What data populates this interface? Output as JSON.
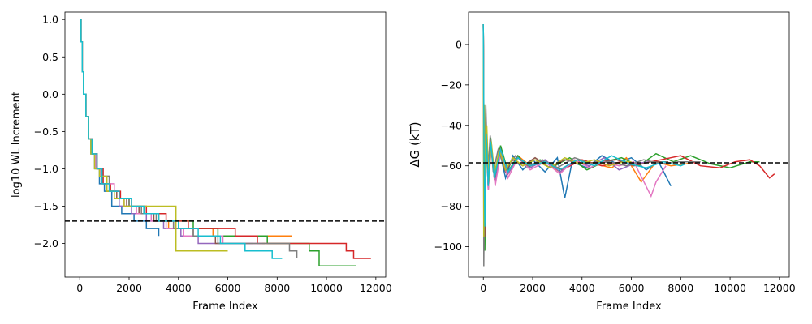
{
  "chart_data": [
    {
      "type": "line",
      "xlabel": "Frame Index",
      "ylabel": "log10 WL Increment",
      "xlim": [
        -600,
        12400
      ],
      "ylim": [
        -2.45,
        1.1
      ],
      "xticks": [
        0,
        2000,
        4000,
        6000,
        8000,
        10000,
        12000
      ],
      "xtick_labels": [
        "0",
        "2000",
        "4000",
        "6000",
        "8000",
        "10000",
        "12000"
      ],
      "yticks": [
        1.0,
        0.5,
        0.0,
        -0.5,
        -1.0,
        -1.5,
        -2.0
      ],
      "ytick_labels": [
        "1.0",
        "0.5",
        "0.0",
        "−0.5",
        "−1.0",
        "−1.5",
        "−2.0"
      ],
      "grid": false,
      "reference_line": {
        "y": -1.7,
        "style": "dashed",
        "color": "#000000"
      },
      "series": [
        {
          "color": "#1f77b4",
          "x": [
            0,
            50,
            100,
            150,
            250,
            350,
            450,
            600,
            800,
            1000,
            1300,
            1700,
            2200,
            2700,
            3200
          ],
          "y": [
            1.0,
            0.7,
            0.3,
            0.0,
            -0.3,
            -0.6,
            -0.8,
            -1.0,
            -1.2,
            -1.3,
            -1.5,
            -1.6,
            -1.7,
            -1.8,
            -1.9
          ]
        },
        {
          "color": "#ff7f0e",
          "x": [
            0,
            50,
            100,
            150,
            250,
            350,
            500,
            700,
            900,
            1200,
            1600,
            2000,
            2500,
            3000,
            3600,
            4400,
            5400,
            6500,
            7400,
            8100,
            8600
          ],
          "y": [
            1.0,
            0.7,
            0.3,
            0.0,
            -0.3,
            -0.6,
            -0.8,
            -1.0,
            -1.1,
            -1.3,
            -1.4,
            -1.5,
            -1.6,
            -1.7,
            -1.8,
            -1.8,
            -1.9,
            -1.9,
            -1.9,
            -1.9,
            -1.9
          ]
        },
        {
          "color": "#2ca02c",
          "x": [
            0,
            50,
            100,
            150,
            250,
            350,
            500,
            700,
            900,
            1200,
            1600,
            2000,
            2600,
            3200,
            3900,
            4600,
            5600,
            6600,
            7600,
            8600,
            9300,
            9700,
            10300,
            11200
          ],
          "y": [
            1.0,
            0.7,
            0.3,
            0.0,
            -0.3,
            -0.6,
            -0.8,
            -1.0,
            -1.1,
            -1.3,
            -1.4,
            -1.5,
            -1.6,
            -1.7,
            -1.7,
            -1.8,
            -1.9,
            -1.9,
            -2.0,
            -2.0,
            -2.1,
            -2.3,
            -2.3,
            -2.3
          ]
        },
        {
          "color": "#d62728",
          "x": [
            0,
            50,
            100,
            150,
            250,
            350,
            500,
            700,
            950,
            1250,
            1650,
            2100,
            2700,
            3500,
            4400,
            5400,
            6300,
            7200,
            8200,
            9300,
            10800,
            11100,
            11800
          ],
          "y": [
            1.0,
            0.7,
            0.3,
            0.0,
            -0.3,
            -0.6,
            -0.8,
            -1.0,
            -1.2,
            -1.3,
            -1.4,
            -1.5,
            -1.6,
            -1.7,
            -1.8,
            -1.8,
            -1.9,
            -2.0,
            -2.0,
            -2.0,
            -2.1,
            -2.2,
            -2.2
          ]
        },
        {
          "color": "#9467bd",
          "x": [
            0,
            50,
            100,
            150,
            250,
            350,
            500,
            700,
            900,
            1200,
            1600,
            2100,
            2700,
            3400,
            4100,
            4800,
            5600,
            6400,
            7000
          ],
          "y": [
            1.0,
            0.7,
            0.3,
            0.0,
            -0.3,
            -0.6,
            -0.8,
            -1.0,
            -1.1,
            -1.3,
            -1.5,
            -1.6,
            -1.7,
            -1.8,
            -1.9,
            -2.0,
            -2.0,
            -2.0,
            -2.0
          ]
        },
        {
          "color": "#8c564b",
          "x": [
            0,
            50,
            100,
            150,
            250,
            350,
            500,
            700,
            900,
            1100,
            1500,
            1900,
            2400,
            3000,
            3800,
            4600,
            5500,
            6500,
            7500
          ],
          "y": [
            1.0,
            0.7,
            0.3,
            0.0,
            -0.3,
            -0.6,
            -0.8,
            -1.0,
            -1.2,
            -1.3,
            -1.4,
            -1.5,
            -1.6,
            -1.7,
            -1.8,
            -1.9,
            -2.0,
            -2.0,
            -2.0
          ]
        },
        {
          "color": "#e377c2",
          "x": [
            0,
            50,
            100,
            150,
            250,
            350,
            500,
            650,
            850,
            1100,
            1400,
            1800,
            2300,
            2900,
            3500,
            4200,
            5000,
            5800,
            6600,
            7400
          ],
          "y": [
            1.0,
            0.7,
            0.3,
            0.0,
            -0.3,
            -0.6,
            -0.8,
            -1.0,
            -1.1,
            -1.2,
            -1.4,
            -1.5,
            -1.6,
            -1.7,
            -1.8,
            -1.9,
            -1.9,
            -2.0,
            -2.0,
            -2.0
          ]
        },
        {
          "color": "#7f7f7f",
          "x": [
            0,
            50,
            100,
            150,
            250,
            350,
            500,
            700,
            900,
            1200,
            1600,
            2000,
            2500,
            3100,
            3800,
            4600,
            5600,
            6600,
            7600,
            8500,
            8800
          ],
          "y": [
            1.0,
            0.7,
            0.3,
            0.0,
            -0.3,
            -0.6,
            -0.8,
            -1.0,
            -1.1,
            -1.3,
            -1.4,
            -1.5,
            -1.6,
            -1.7,
            -1.8,
            -1.9,
            -2.0,
            -2.0,
            -2.0,
            -2.1,
            -2.2
          ]
        },
        {
          "color": "#bcbd22",
          "x": [
            0,
            50,
            100,
            150,
            250,
            350,
            450,
            600,
            800,
            1100,
            1400,
            1800,
            2300,
            2900,
            3700,
            3900,
            4300,
            4900,
            5600,
            6000
          ],
          "y": [
            1.0,
            0.7,
            0.3,
            0.0,
            -0.3,
            -0.6,
            -0.8,
            -1.0,
            -1.1,
            -1.3,
            -1.4,
            -1.5,
            -1.5,
            -1.5,
            -1.5,
            -2.1,
            -2.1,
            -2.1,
            -2.1,
            -2.1
          ]
        },
        {
          "color": "#17becf",
          "x": [
            0,
            50,
            100,
            150,
            250,
            350,
            500,
            700,
            900,
            1200,
            1600,
            2100,
            2600,
            3200,
            4000,
            4800,
            5700,
            6700,
            7800,
            8200
          ],
          "y": [
            1.0,
            0.7,
            0.3,
            0.0,
            -0.3,
            -0.6,
            -0.8,
            -1.0,
            -1.2,
            -1.3,
            -1.4,
            -1.5,
            -1.6,
            -1.7,
            -1.8,
            -1.9,
            -2.0,
            -2.1,
            -2.2,
            -2.2
          ]
        }
      ]
    },
    {
      "type": "line",
      "xlabel": "Frame Index",
      "ylabel": "ΔG (kT)",
      "xlim": [
        -600,
        12400
      ],
      "ylim": [
        -115,
        16
      ],
      "xticks": [
        0,
        2000,
        4000,
        6000,
        8000,
        10000,
        12000
      ],
      "xtick_labels": [
        "0",
        "2000",
        "4000",
        "6000",
        "8000",
        "10000",
        "12000"
      ],
      "yticks": [
        0,
        -20,
        -40,
        -60,
        -80,
        -100
      ],
      "ytick_labels": [
        "0",
        "−20",
        "−40",
        "−60",
        "−80",
        "−100"
      ],
      "grid": false,
      "reference_line": {
        "y": -58.5,
        "style": "dashed",
        "color": "#000000"
      },
      "series": [
        {
          "color": "#1f77b4",
          "x": [
            0,
            30,
            60,
            120,
            200,
            300,
            450,
            650,
            900,
            1200,
            1600,
            2000,
            2500,
            3000,
            3300,
            3600,
            4200,
            4800,
            5400,
            6000,
            6600,
            7100,
            7600
          ],
          "y": [
            10,
            -60,
            -85,
            -45,
            -70,
            -50,
            -65,
            -52,
            -66,
            -55,
            -62,
            -57,
            -63,
            -56,
            -76,
            -58,
            -61,
            -55,
            -59,
            -56,
            -62,
            -58,
            -70
          ]
        },
        {
          "color": "#ff7f0e",
          "x": [
            0,
            30,
            60,
            120,
            200,
            320,
            480,
            700,
            1000,
            1400,
            1900,
            2500,
            3100,
            3800,
            4500,
            5200,
            5800,
            6400,
            7000,
            7600,
            8200,
            8600
          ],
          "y": [
            10,
            -55,
            -92,
            -40,
            -72,
            -48,
            -68,
            -52,
            -64,
            -55,
            -60,
            -58,
            -63,
            -57,
            -59,
            -61,
            -56,
            -68,
            -58,
            -60,
            -59,
            -58
          ]
        },
        {
          "color": "#2ca02c",
          "x": [
            0,
            30,
            60,
            120,
            200,
            300,
            450,
            700,
            1000,
            1400,
            1800,
            2300,
            2900,
            3500,
            4200,
            4900,
            5600,
            6300,
            7000,
            7700,
            8400,
            9200,
            10000,
            10800,
            11200
          ],
          "y": [
            10,
            -50,
            -102,
            -42,
            -70,
            -46,
            -66,
            -50,
            -63,
            -55,
            -61,
            -57,
            -60,
            -56,
            -62,
            -58,
            -56,
            -60,
            -54,
            -58,
            -55,
            -59,
            -61,
            -58,
            -58
          ]
        },
        {
          "color": "#d62728",
          "x": [
            0,
            30,
            60,
            120,
            200,
            300,
            450,
            700,
            1000,
            1400,
            1900,
            2500,
            3200,
            4000,
            4800,
            5600,
            6400,
            7200,
            8000,
            8800,
            9600,
            10200,
            10800,
            11200,
            11600,
            11800
          ],
          "y": [
            10,
            -55,
            -88,
            -44,
            -70,
            -48,
            -66,
            -52,
            -64,
            -56,
            -60,
            -58,
            -62,
            -57,
            -60,
            -58,
            -59,
            -57,
            -55,
            -60,
            -61,
            -58,
            -57,
            -60,
            -66,
            -64
          ]
        },
        {
          "color": "#9467bd",
          "x": [
            0,
            30,
            60,
            120,
            200,
            320,
            480,
            700,
            1000,
            1400,
            1900,
            2500,
            3100,
            3700,
            4300,
            4900,
            5500,
            6100,
            6700,
            7000
          ],
          "y": [
            10,
            -58,
            -90,
            -46,
            -72,
            -50,
            -68,
            -54,
            -64,
            -56,
            -61,
            -57,
            -63,
            -58,
            -60,
            -56,
            -62,
            -59,
            -58,
            -58
          ]
        },
        {
          "color": "#8c564b",
          "x": [
            0,
            30,
            60,
            120,
            200,
            300,
            450,
            650,
            900,
            1200,
            1600,
            2100,
            2700,
            3300,
            4000,
            4700,
            5400,
            6100,
            6800,
            7500
          ],
          "y": [
            10,
            -52,
            -95,
            -44,
            -70,
            -48,
            -67,
            -53,
            -63,
            -57,
            -60,
            -56,
            -61,
            -57,
            -59,
            -58,
            -57,
            -60,
            -58,
            -58
          ]
        },
        {
          "color": "#e377c2",
          "x": [
            0,
            30,
            60,
            120,
            200,
            320,
            480,
            700,
            1000,
            1400,
            1900,
            2500,
            3100,
            3700,
            4300,
            4900,
            5500,
            6100,
            6800,
            7000,
            7400
          ],
          "y": [
            10,
            -56,
            -88,
            -45,
            -72,
            -50,
            -70,
            -54,
            -66,
            -56,
            -62,
            -58,
            -64,
            -57,
            -61,
            -58,
            -60,
            -58,
            -75,
            -68,
            -60
          ]
        },
        {
          "color": "#7f7f7f",
          "x": [
            0,
            20,
            50,
            100,
            180,
            280,
            400,
            600,
            900,
            1300,
            1800,
            2400,
            3000,
            3700,
            4400,
            5100,
            5800,
            6500,
            7200,
            7900,
            8600,
            8800
          ],
          "y": [
            10,
            -110,
            -60,
            -30,
            -65,
            -45,
            -63,
            -52,
            -62,
            -55,
            -60,
            -57,
            -61,
            -56,
            -59,
            -58,
            -60,
            -57,
            -59,
            -58,
            -58,
            -58
          ]
        },
        {
          "color": "#bcbd22",
          "x": [
            0,
            20,
            40,
            80,
            140,
            220,
            320,
            450,
            650,
            900,
            1200,
            1600,
            2100,
            2700,
            3300,
            3900,
            4500,
            5100,
            5700,
            6000
          ],
          "y": [
            10,
            -95,
            -30,
            -70,
            -40,
            -68,
            -48,
            -64,
            -52,
            -62,
            -56,
            -60,
            -57,
            -61,
            -56,
            -59,
            -57,
            -60,
            -58,
            -58
          ]
        },
        {
          "color": "#17becf",
          "x": [
            0,
            30,
            60,
            120,
            200,
            300,
            450,
            700,
            1000,
            1400,
            1900,
            2500,
            3100,
            3800,
            4500,
            5200,
            5900,
            6600,
            7300,
            8000,
            8200
          ],
          "y": [
            10,
            -54,
            -90,
            -44,
            -70,
            -48,
            -66,
            -52,
            -63,
            -56,
            -60,
            -58,
            -62,
            -57,
            -60,
            -55,
            -59,
            -61,
            -58,
            -60,
            -59
          ]
        }
      ]
    }
  ]
}
